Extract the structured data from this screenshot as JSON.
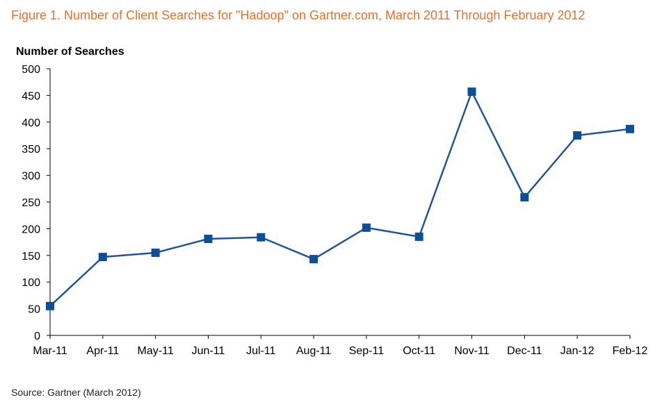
{
  "figure_title": "Figure 1. Number of Client Searches for \"Hadoop\" on Gartner.com, March 2011 Through February 2012",
  "source": "Source: Gartner (March 2012)",
  "colors": {
    "title": "#e8702a",
    "line": "#1f5596",
    "marker": "#0b4f99",
    "axis": "#000000"
  },
  "chart_data": {
    "type": "line",
    "title": "Figure 1. Number of Client Searches for \"Hadoop\" on Gartner.com, March 2011 Through February 2012",
    "ylabel": "Number of Searches",
    "xlabel": "",
    "categories": [
      "Mar-11",
      "Apr-11",
      "May-11",
      "Jun-11",
      "Jul-11",
      "Aug-11",
      "Sep-11",
      "Oct-11",
      "Nov-11",
      "Dec-11",
      "Jan-12",
      "Feb-12"
    ],
    "series": [
      {
        "values": [
          55,
          147,
          155,
          181,
          184,
          143,
          202,
          185,
          457,
          259,
          375,
          387
        ]
      }
    ],
    "ylim": [
      0,
      500
    ],
    "yticks": [
      0,
      50,
      100,
      150,
      200,
      250,
      300,
      350,
      400,
      450,
      500
    ],
    "grid": false,
    "legend": "none",
    "marker": "square"
  }
}
